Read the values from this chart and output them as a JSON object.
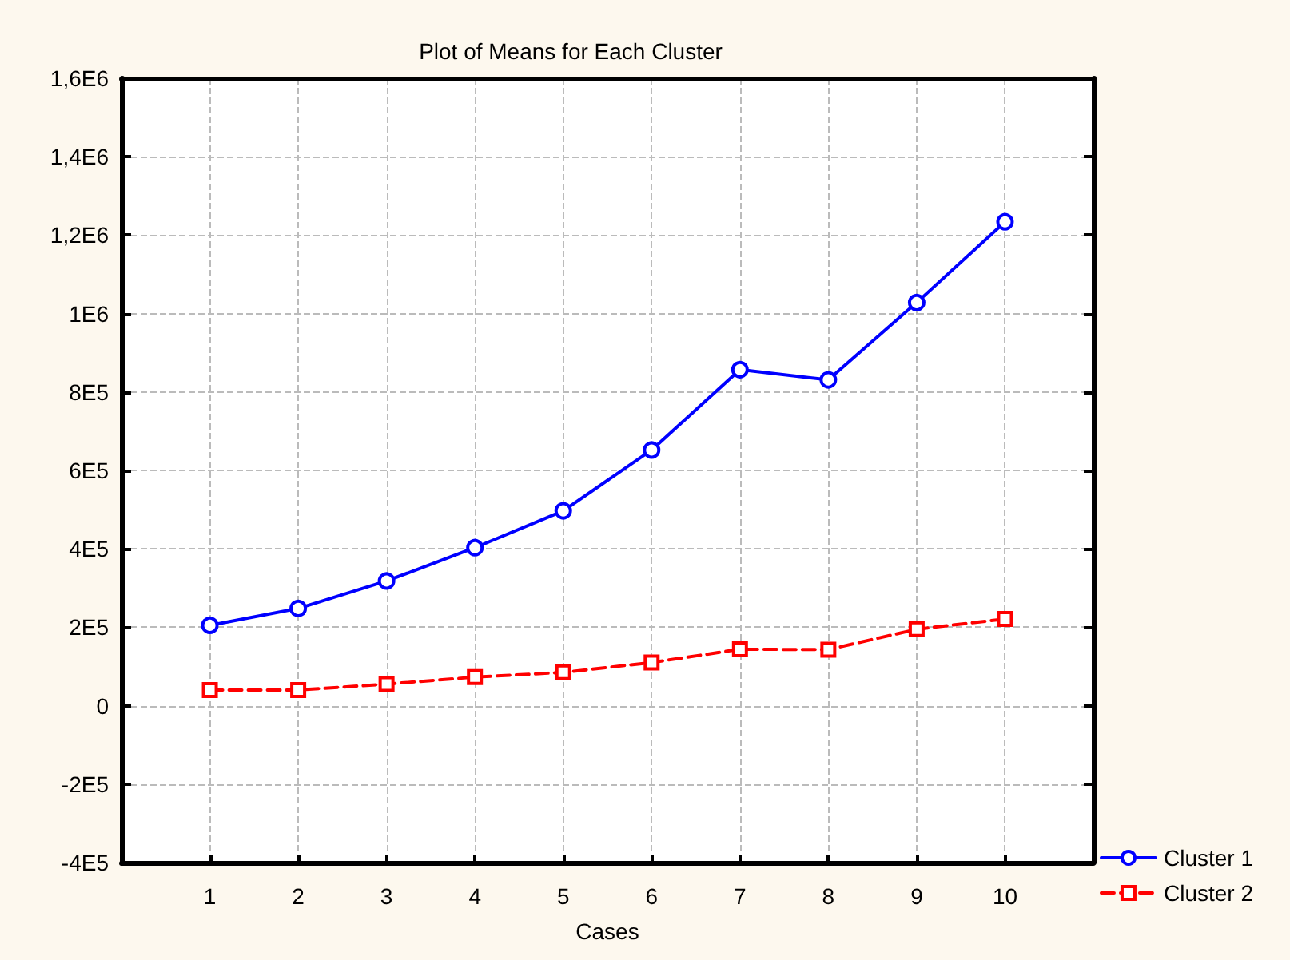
{
  "chart_data": {
    "type": "line",
    "title": "Plot of Means for Each Cluster",
    "xlabel": "Cases",
    "x": [
      1,
      2,
      3,
      4,
      5,
      6,
      7,
      8,
      9,
      10
    ],
    "series": [
      {
        "name": "Cluster 1",
        "color": "#0000ff",
        "marker": "circle",
        "line_style": "solid",
        "values": [
          205000,
          248000,
          318000,
          403000,
          497000,
          652000,
          857000,
          831000,
          1028000,
          1234000
        ]
      },
      {
        "name": "Cluster 2",
        "color": "#ff0000",
        "marker": "square",
        "line_style": "dashed",
        "values": [
          40000,
          40000,
          55000,
          73000,
          85000,
          110000,
          144000,
          143000,
          195000,
          221000
        ]
      }
    ],
    "xlim": [
      0,
      11
    ],
    "xticks": [
      1,
      2,
      3,
      4,
      5,
      6,
      7,
      8,
      9,
      10
    ],
    "ylim": [
      -400000,
      1600000
    ],
    "yticks": [
      {
        "value": -400000,
        "label": "-4E5"
      },
      {
        "value": -200000,
        "label": "-2E5"
      },
      0,
      {
        "value": 200000,
        "label": "2E5"
      },
      {
        "value": 400000,
        "label": "4E5"
      },
      {
        "value": 600000,
        "label": "6E5"
      },
      {
        "value": 800000,
        "label": "8E5"
      },
      {
        "value": 1000000,
        "label": "1E6"
      },
      {
        "value": 1200000,
        "label": "1,2E6"
      },
      {
        "value": 1400000,
        "label": "1,4E6"
      },
      {
        "value": 1600000,
        "label": "1,6E6"
      }
    ],
    "grid": true,
    "legend": "bottom right"
  }
}
